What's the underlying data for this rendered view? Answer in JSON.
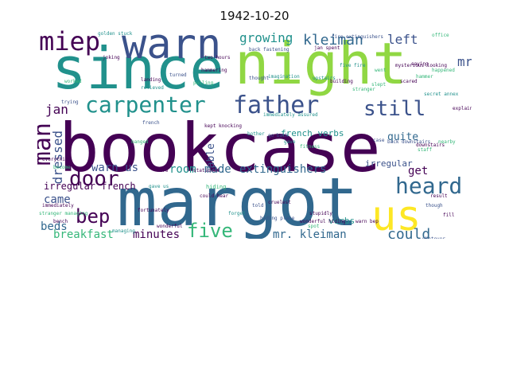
{
  "title": "1942-10-20",
  "palette": {
    "dark_purple": "#440154",
    "indigo": "#3b528b",
    "blue": "#31688e",
    "teal": "#21918c",
    "green": "#35b779",
    "lime": "#90d743",
    "yellow": "#fde725"
  },
  "words": [
    {
      "text": "bookcase",
      "color": "#440154",
      "vertical": false
    },
    {
      "text": "margot",
      "color": "#31688e",
      "vertical": false
    },
    {
      "text": "since",
      "color": "#21918c",
      "vertical": false
    },
    {
      "text": "night",
      "color": "#90d743",
      "vertical": false
    },
    {
      "text": "warn",
      "color": "#3b528b",
      "vertical": false
    },
    {
      "text": "us",
      "color": "#fde725",
      "vertical": false
    },
    {
      "text": "father",
      "color": "#3b528b",
      "vertical": false
    },
    {
      "text": "carpenter",
      "color": "#21918c",
      "vertical": false
    },
    {
      "text": "miep",
      "color": "#440154",
      "vertical": false
    },
    {
      "text": "man",
      "color": "#440154",
      "vertical": true
    },
    {
      "text": "door",
      "color": "#440154",
      "vertical": false
    },
    {
      "text": "heard",
      "color": "#31688e",
      "vertical": false
    },
    {
      "text": "bep",
      "color": "#440154",
      "vertical": false
    },
    {
      "text": "five",
      "color": "#35b779",
      "vertical": false
    },
    {
      "text": "still",
      "color": "#3b528b",
      "vertical": false
    },
    {
      "text": "growing",
      "color": "#21918c",
      "vertical": false
    },
    {
      "text": "kleiman",
      "color": "#31688e",
      "vertical": false
    },
    {
      "text": "mr.",
      "color": "#3b528b",
      "vertical": false
    },
    {
      "text": "left",
      "color": "#3b528b",
      "vertical": false
    },
    {
      "text": "jan",
      "color": "#440154",
      "vertical": false
    },
    {
      "text": "dressed",
      "color": "#3b528b",
      "vertical": true
    },
    {
      "text": "able",
      "color": "#3b528b",
      "vertical": true
    },
    {
      "text": "warn us",
      "color": "#3b528b",
      "vertical": false
    },
    {
      "text": "room",
      "color": "#21918c",
      "vertical": false
    },
    {
      "text": "made",
      "color": "#31688e",
      "vertical": false
    },
    {
      "text": "extinguishers",
      "color": "#31688e",
      "vertical": false
    },
    {
      "text": "get",
      "color": "#440154",
      "vertical": false
    },
    {
      "text": "came",
      "color": "#3b528b",
      "vertical": false
    },
    {
      "text": "beds",
      "color": "#31688e",
      "vertical": false
    },
    {
      "text": "breakfast",
      "color": "#35b779",
      "vertical": false
    },
    {
      "text": "minutes",
      "color": "#440154",
      "vertical": false
    },
    {
      "text": "mr. kleiman",
      "color": "#31688e",
      "vertical": false
    },
    {
      "text": "could",
      "color": "#31688e",
      "vertical": false
    },
    {
      "text": "quite",
      "color": "#31688e",
      "vertical": false
    },
    {
      "text": "french verbs",
      "color": "#21918c",
      "vertical": false
    },
    {
      "text": "irregular",
      "color": "#3b528b",
      "vertical": false
    },
    {
      "text": "irregular french",
      "color": "#440154",
      "vertical": false
    },
    {
      "text": "verbs",
      "color": "#21918c",
      "vertical": false
    },
    {
      "text": "hiding",
      "color": "#35b779",
      "vertical": false
    },
    {
      "text": "office",
      "color": "#35b779",
      "vertical": false
    },
    {
      "text": "staff",
      "color": "#35b779",
      "vertical": false
    },
    {
      "text": "fire extinguishers",
      "color": "#3b528b",
      "vertical": false
    },
    {
      "text": "five fire",
      "color": "#21918c",
      "vertical": false
    },
    {
      "text": "back fastening",
      "color": "#3b528b",
      "vertical": false
    },
    {
      "text": "mysterious-looking",
      "color": "#440154",
      "vertical": false
    },
    {
      "text": "went",
      "color": "#35b779",
      "vertical": false
    },
    {
      "text": "hammering",
      "color": "#440154",
      "vertical": false
    },
    {
      "text": "thought",
      "color": "#3b528b",
      "vertical": false
    },
    {
      "text": "upstairs",
      "color": "#21918c",
      "vertical": false
    },
    {
      "text": "building",
      "color": "#440154",
      "vertical": false
    },
    {
      "text": "pulling",
      "color": "#35b779",
      "vertical": false
    },
    {
      "text": "imagination",
      "color": "#21918c",
      "vertical": false
    },
    {
      "text": "turned",
      "color": "#3b528b",
      "vertical": false
    },
    {
      "text": "landing",
      "color": "#440154",
      "vertical": false
    },
    {
      "text": "relieved",
      "color": "#21918c",
      "vertical": false
    },
    {
      "text": "trying",
      "color": "#3b528b",
      "vertical": false
    },
    {
      "text": "joking",
      "color": "#440154",
      "vertical": false
    },
    {
      "text": "worked",
      "color": "#35b779",
      "vertical": false
    },
    {
      "text": "two hours",
      "color": "#440154",
      "vertical": false
    },
    {
      "text": "jan spent",
      "color": "#440154",
      "vertical": false
    },
    {
      "text": "slept",
      "color": "#35b779",
      "vertical": false
    },
    {
      "text": "stranger",
      "color": "#35b779",
      "vertical": false
    },
    {
      "text": "bother",
      "color": "#21918c",
      "vertical": false
    },
    {
      "text": "immediately assured",
      "color": "#21918c",
      "vertical": false
    },
    {
      "text": "french",
      "color": "#3b528b",
      "vertical": false
    },
    {
      "text": "fitness",
      "color": "#35b779",
      "vertical": false
    },
    {
      "text": "downstairs",
      "color": "#440154",
      "vertical": false
    },
    {
      "text": "back downstairs",
      "color": "#3b528b",
      "vertical": false
    },
    {
      "text": "case",
      "color": "#3b528b",
      "vertical": false
    },
    {
      "text": "told",
      "color": "#3b528b",
      "vertical": false
    },
    {
      "text": "forget",
      "color": "#21918c",
      "vertical": false
    },
    {
      "text": "could hear",
      "color": "#440154",
      "vertical": false
    },
    {
      "text": "hiding place",
      "color": "#3b528b",
      "vertical": false
    },
    {
      "text": "stupidly",
      "color": "#440154",
      "vertical": false
    },
    {
      "text": "fortunately",
      "color": "#440154",
      "vertical": false
    },
    {
      "text": "wonderful hiding",
      "color": "#440154",
      "vertical": false
    },
    {
      "text": "gave",
      "color": "#21918c",
      "vertical": false
    },
    {
      "text": "go back",
      "color": "#3b528b",
      "vertical": false
    },
    {
      "text": "become",
      "color": "#35b779",
      "vertical": false
    },
    {
      "text": "fire",
      "color": "#440154",
      "vertical": false
    },
    {
      "text": "cruelest",
      "color": "#440154",
      "vertical": false
    },
    {
      "text": "spot",
      "color": "#35b779",
      "vertical": false
    },
    {
      "text": "everything",
      "color": "#440154",
      "vertical": false
    },
    {
      "text": "managing",
      "color": "#21918c",
      "vertical": false
    },
    {
      "text": "stranger managing",
      "color": "#35b779",
      "vertical": false
    },
    {
      "text": "immediately",
      "color": "#440154",
      "vertical": false
    },
    {
      "text": "wonderful",
      "color": "#440154",
      "vertical": false
    },
    {
      "text": "whatever",
      "color": "#3b528b",
      "vertical": false
    },
    {
      "text": "nearby",
      "color": "#35b779",
      "vertical": false
    },
    {
      "text": "fill",
      "color": "#440154",
      "vertical": false
    },
    {
      "text": "happened",
      "color": "#35b779",
      "vertical": false
    },
    {
      "text": "scared",
      "color": "#440154",
      "vertical": false
    },
    {
      "text": "warn bep",
      "color": "#440154",
      "vertical": false
    },
    {
      "text": "kept knocking",
      "color": "#440154",
      "vertical": false
    },
    {
      "text": "secret annex",
      "color": "#21918c",
      "vertical": false
    },
    {
      "text": "result",
      "color": "#440154",
      "vertical": false
    },
    {
      "text": "saying",
      "color": "#440154",
      "vertical": false
    },
    {
      "text": "hammer",
      "color": "#35b779",
      "vertical": false
    },
    {
      "text": "explain",
      "color": "#440154",
      "vertical": false
    },
    {
      "text": "stationed",
      "color": "#440154",
      "vertical": false
    },
    {
      "text": "banged",
      "color": "#35b779",
      "vertical": false
    },
    {
      "text": "gave us",
      "color": "#21918c",
      "vertical": false
    },
    {
      "text": "though",
      "color": "#3b528b",
      "vertical": false
    },
    {
      "text": "bench",
      "color": "#440154",
      "vertical": false
    },
    {
      "text": "golden stuck",
      "color": "#21918c",
      "vertical": false
    }
  ]
}
